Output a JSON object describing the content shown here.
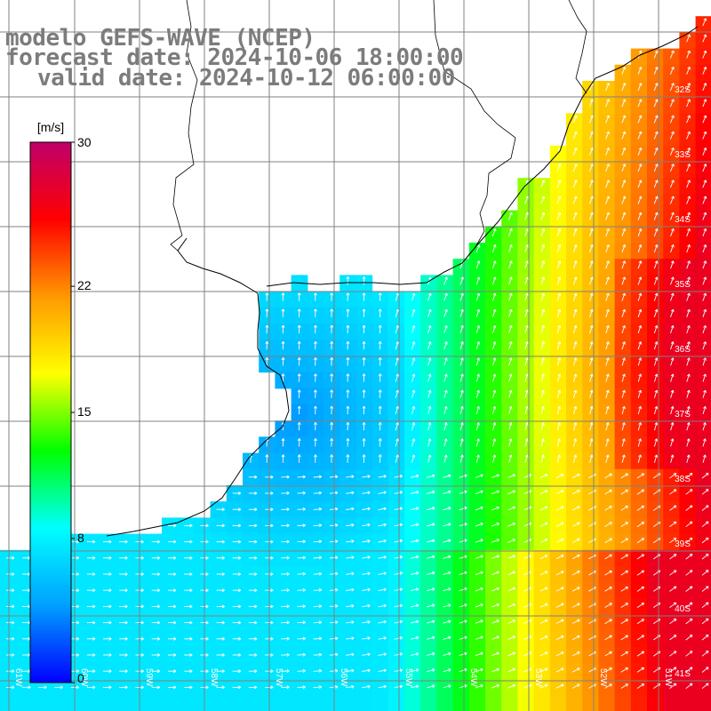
{
  "header": {
    "line1": "modelo GEFS-WAVE (NCEP)",
    "line2": "forecast date: 2024-10-06 18:00:00",
    "line3": "valid date: 2024-10-12 06:00:00"
  },
  "colorbar": {
    "unit_label": "[m/s]",
    "ticks": [
      "30",
      "22",
      "15",
      "8",
      "0"
    ],
    "tick_values": [
      30,
      22,
      15,
      8,
      0
    ],
    "range": [
      0,
      30
    ],
    "stops": [
      "#0000ff",
      "#00a0ff",
      "#00ffff",
      "#00ff00",
      "#ffff00",
      "#ff9900",
      "#ff0000",
      "#c0006a"
    ]
  },
  "latitude_labels": [
    "32S",
    "33S",
    "34S",
    "35S",
    "36S",
    "37S",
    "38S",
    "39S",
    "40S",
    "41S"
  ],
  "longitude_labels": [
    "61W",
    "60W",
    "59W",
    "58W",
    "57W",
    "56W",
    "55W",
    "54W",
    "53W",
    "52W",
    "51W"
  ],
  "colors": {
    "land": "#ffffff",
    "grid": "#808080",
    "coast": "#000000",
    "arrows": "#ffffff",
    "title": "#7c7c7c"
  }
}
